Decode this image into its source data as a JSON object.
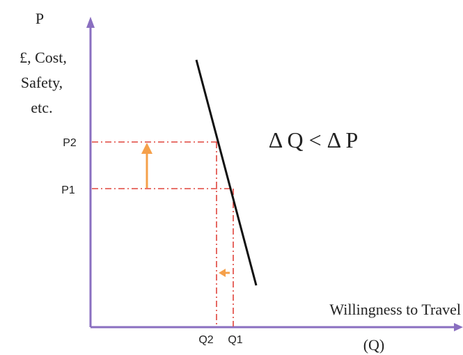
{
  "y_axis": {
    "symbol": "P",
    "label_lines": [
      "£, Cost,",
      "Safety,",
      "etc."
    ]
  },
  "x_axis": {
    "label_line1": "Willingness to Travel",
    "label_line2": "(Q)"
  },
  "ticks": {
    "p2": "P2",
    "p1": "P1",
    "q2": "Q2",
    "q1": "Q1"
  },
  "annotation": "Δ Q < Δ P",
  "colors": {
    "axis": "#8a6fc0",
    "demand_line": "#111111",
    "guide_lines": "#e0443c",
    "change_arrows": "#f5a04a"
  }
}
